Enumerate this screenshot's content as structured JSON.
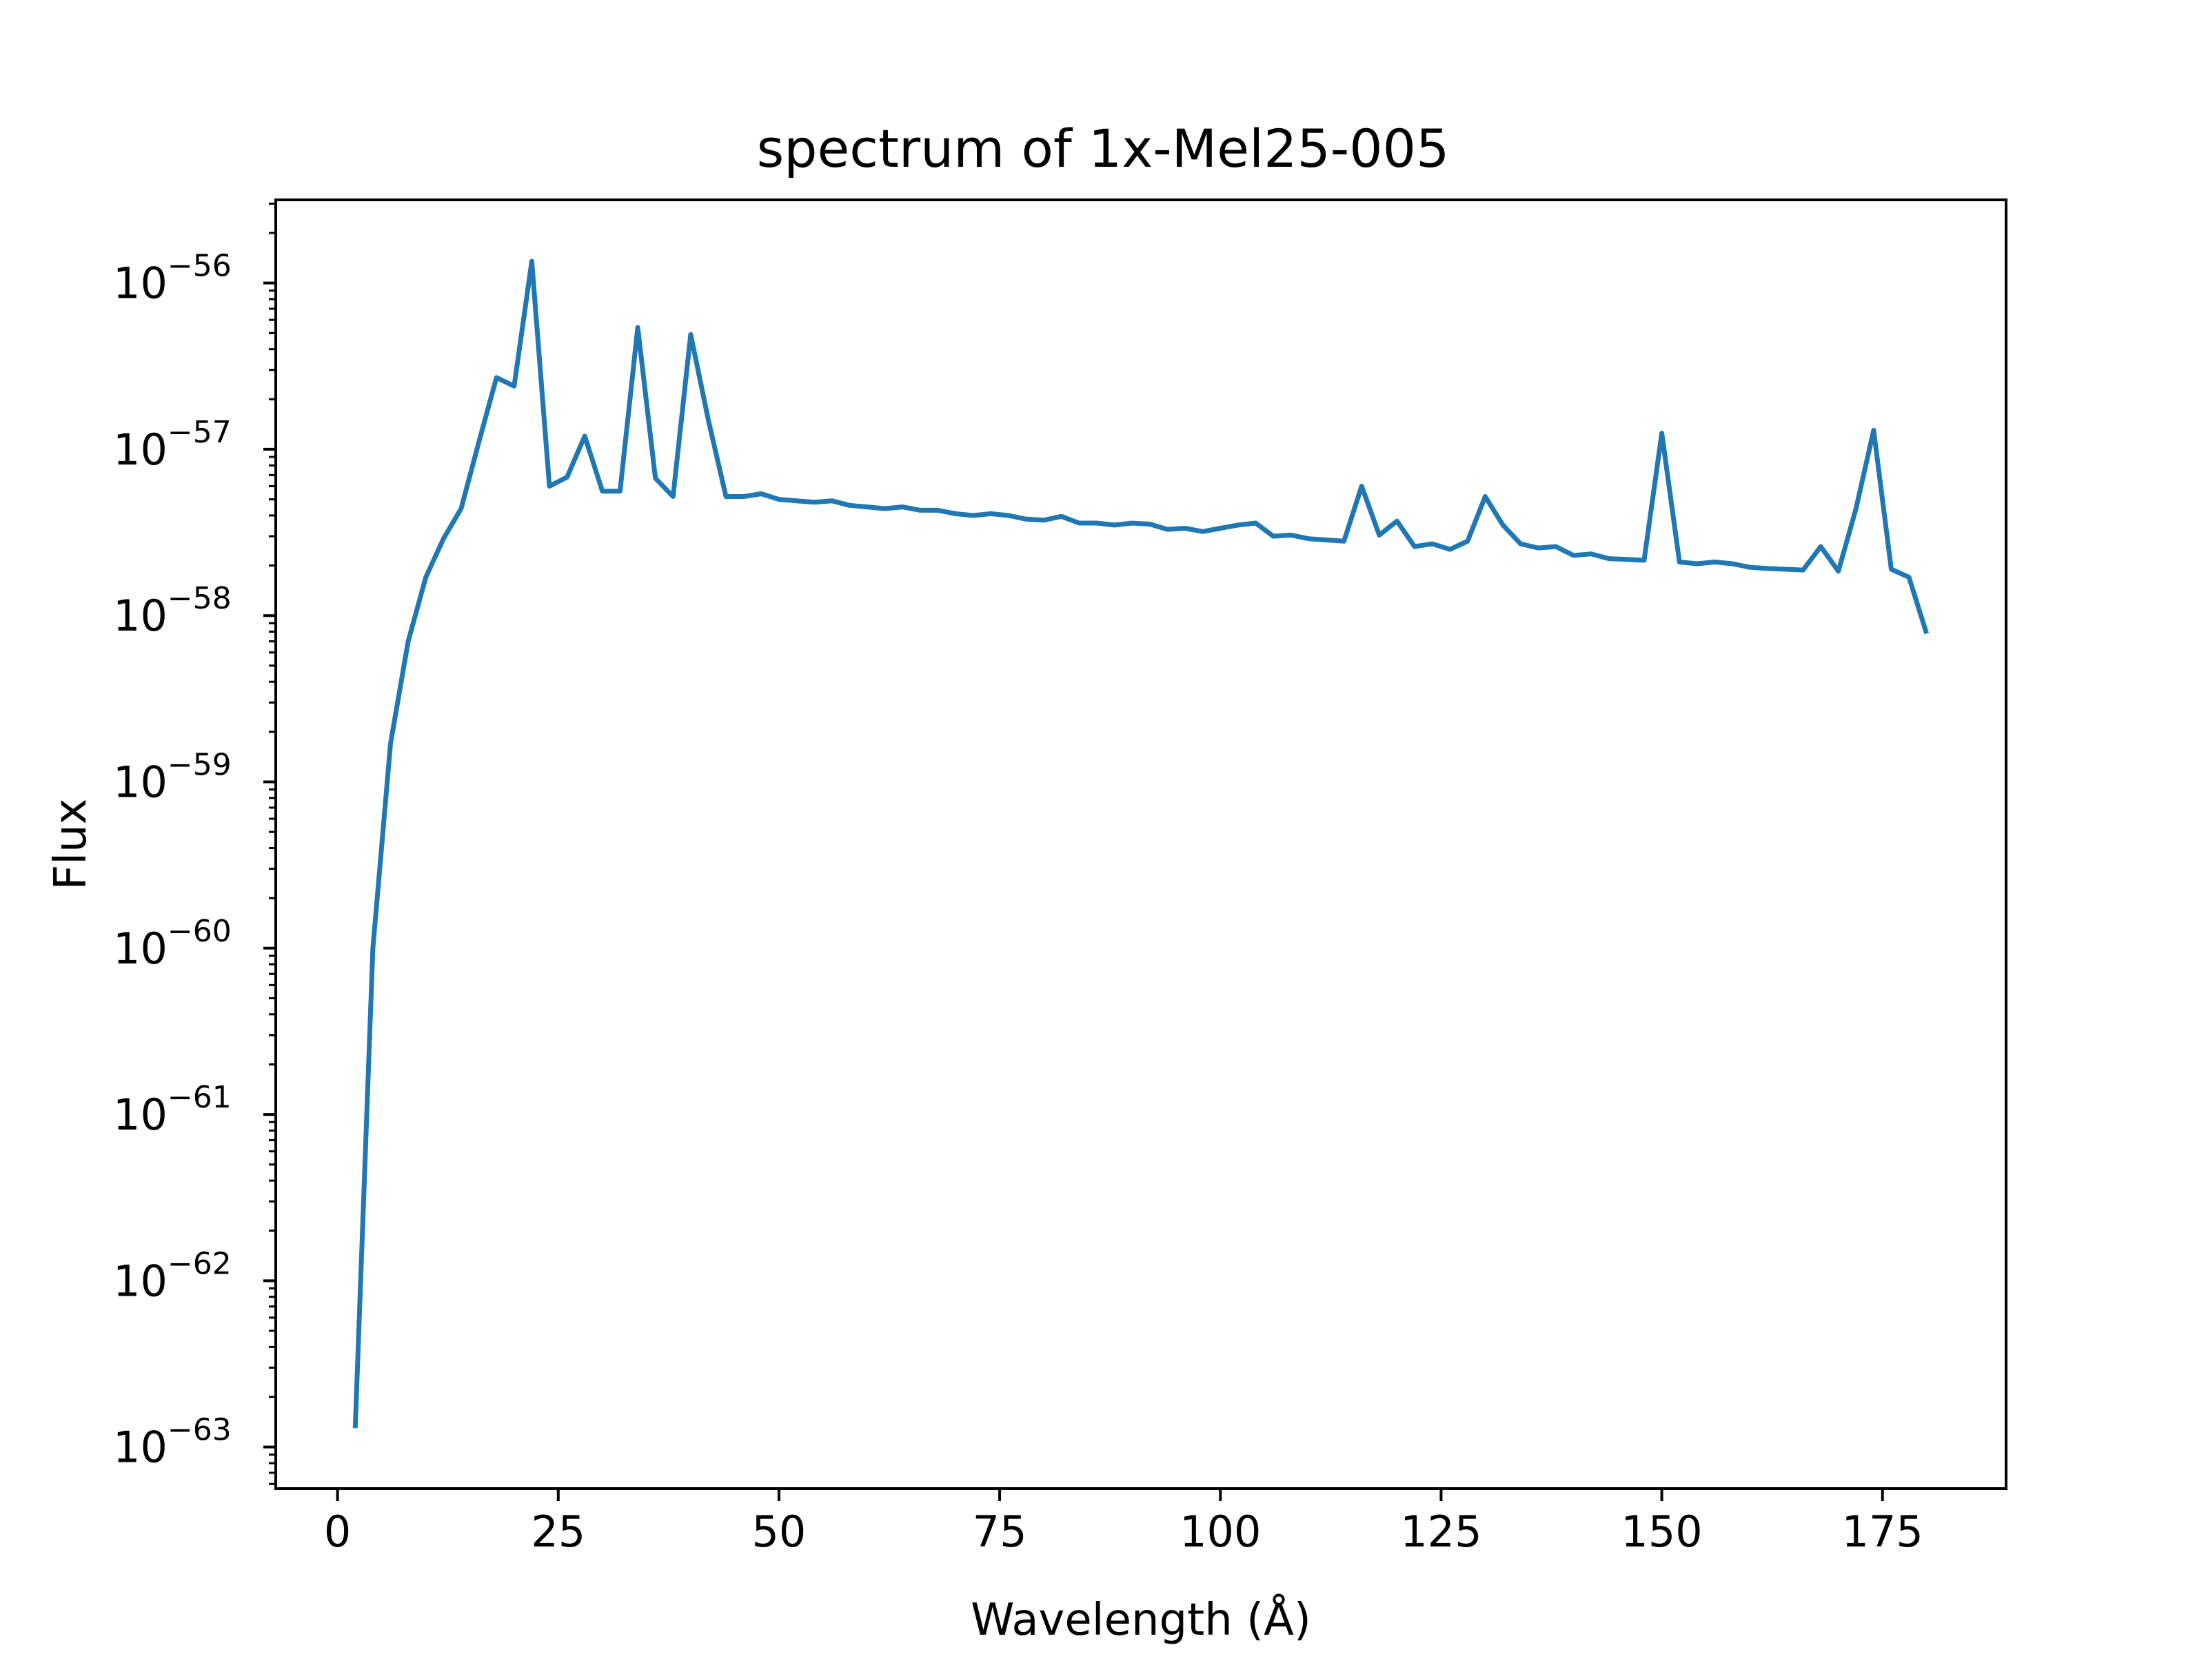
{
  "chart_data": {
    "type": "line",
    "title": "spectrum of 1x-Mel25-005",
    "xlabel": "Wavelength (Å)",
    "ylabel": "Flux",
    "yscale": "log",
    "xlim": [
      -7,
      189
    ],
    "ylim_log10": [
      -63.25,
      -55.5
    ],
    "grid": false,
    "xticks": [
      0,
      25,
      50,
      75,
      100,
      125,
      150,
      175
    ],
    "xtick_labels": [
      "0",
      "25",
      "50",
      "75",
      "100",
      "125",
      "150",
      "175"
    ],
    "yticks_log10": [
      -63,
      -62,
      -61,
      -60,
      -59,
      -58,
      -57,
      -56
    ],
    "ytick_labels": [
      {
        "base": "10",
        "exp": "−63"
      },
      {
        "base": "10",
        "exp": "−62"
      },
      {
        "base": "10",
        "exp": "−61"
      },
      {
        "base": "10",
        "exp": "−60"
      },
      {
        "base": "10",
        "exp": "−59"
      },
      {
        "base": "10",
        "exp": "−58"
      },
      {
        "base": "10",
        "exp": "−57"
      },
      {
        "base": "10",
        "exp": "−56"
      }
    ],
    "line_color": "#1f77b4",
    "series": [
      {
        "x": [
          2,
          4,
          6,
          8,
          10,
          12,
          14,
          16,
          18,
          20,
          22,
          24,
          26,
          28,
          30,
          32,
          34,
          36,
          38,
          40,
          42,
          44,
          46,
          48,
          50,
          52,
          54,
          56,
          58,
          60,
          62,
          64,
          66,
          68,
          70,
          72,
          74,
          76,
          78,
          80,
          82,
          84,
          86,
          88,
          90,
          92,
          94,
          96,
          98,
          100,
          102,
          104,
          106,
          108,
          110,
          112,
          114,
          116,
          118,
          120,
          122,
          124,
          126,
          128,
          130,
          132,
          134,
          136,
          138,
          140,
          142,
          144,
          146,
          148,
          150,
          152,
          154,
          156,
          158,
          160,
          162,
          164,
          166,
          168,
          170,
          172,
          174,
          176,
          178,
          180
        ],
        "y": [
          "1.3e-63",
          "1e-60",
          "1.7e-59",
          "7e-59",
          "1.7e-58",
          "2.9e-58",
          "4.4e-58",
          "1.1e-57",
          "2.7e-57",
          "2.4e-57",
          "1.35e-56",
          "6e-58",
          "6.8e-58",
          "1.2e-57",
          "5.6e-58",
          "5.6e-58",
          "5.4e-57",
          "6.7e-58",
          "5.2e-58",
          "4.9e-57",
          "1.5e-57",
          "5.2e-58",
          "5.2e-58",
          "5.4e-58",
          "5e-58",
          "4.9e-58",
          "4.8e-58",
          "4.9e-58",
          "4.6e-58",
          "4.5e-58",
          "4.4e-58",
          "4.5e-58",
          "4.3e-58",
          "4.3e-58",
          "4.1e-58",
          "4e-58",
          "4.1e-58",
          "4e-58",
          "3.8e-58",
          "3.75e-58",
          "3.95e-58",
          "3.6e-58",
          "3.6e-58",
          "3.5e-58",
          "3.6e-58",
          "3.55e-58",
          "3.3e-58",
          "3.35e-58",
          "3.2e-58",
          "3.35e-58",
          "3.5e-58",
          "3.6e-58",
          "3e-58",
          "3.05e-58",
          "2.9e-58",
          "2.85e-58",
          "2.8e-58",
          "6e-58",
          "3.05e-58",
          "3.7e-58",
          "2.6e-58",
          "2.7e-58",
          "2.5e-58",
          "2.8e-58",
          "5.2e-58",
          "3.5e-58",
          "2.7e-58",
          "2.55e-58",
          "2.6e-58",
          "2.3e-58",
          "2.35e-58",
          "2.2e-58",
          "2.18e-58",
          "2.15e-58",
          "1.25e-57",
          "2.1e-58",
          "2.05e-58",
          "2.1e-58",
          "2.05e-58",
          "1.95e-58",
          "1.92e-58",
          "1.9e-58",
          "1.88e-58",
          "2.6e-58",
          "1.85e-58",
          "4.4e-58",
          "1.3e-57",
          "1.9e-58",
          "1.7e-58",
          "7.8e-59"
        ]
      }
    ]
  }
}
